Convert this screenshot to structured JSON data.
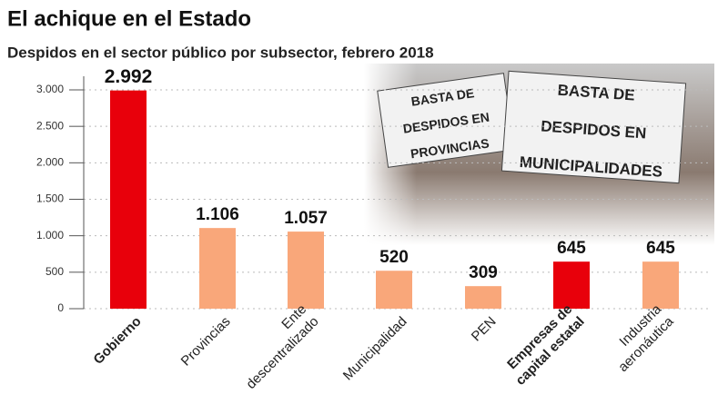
{
  "chart_data": {
    "type": "bar",
    "title": "El achique en el Estado",
    "subtitle": "Despidos en el sector público por subsector, febrero 2018",
    "categories": [
      [
        "Gobierno"
      ],
      [
        "Provincias"
      ],
      [
        "Ente",
        "descentralizado"
      ],
      [
        "Municipalidad"
      ],
      [
        "PEN"
      ],
      [
        "Empresas de",
        "capital estatal"
      ],
      [
        "Industria",
        "aeronáutica"
      ]
    ],
    "values": [
      2992,
      1106,
      1057,
      520,
      309,
      645,
      645
    ],
    "value_labels": [
      "2.992",
      "1.106",
      "1.057",
      "520",
      "309",
      "645",
      "645"
    ],
    "colors": [
      "#e8000b",
      "#f9a77a",
      "#f9a77a",
      "#f9a77a",
      "#f9a77a",
      "#e8000b",
      "#f9a77a"
    ],
    "highlight_color": "#e8000b",
    "ylim": [
      0,
      3000
    ],
    "yticks": [
      0,
      {
        "value": 500,
        "label": "500"
      },
      {
        "value": 1000,
        "label": "1.000"
      },
      {
        "value": 1500,
        "label": "1.500"
      },
      {
        "value": 2000,
        "label": "2.000"
      },
      {
        "value": 2500,
        "label": "2.500"
      },
      {
        "value": 3000,
        "label": "3.000"
      }
    ],
    "grid": true
  },
  "photo": {
    "signs": [
      [
        "BASTA DE",
        "DESPIDOS EN",
        "PROVINCIAS"
      ],
      [
        "BASTA DE",
        "DESPIDOS EN",
        "MUNICIPALIDADES"
      ]
    ]
  }
}
